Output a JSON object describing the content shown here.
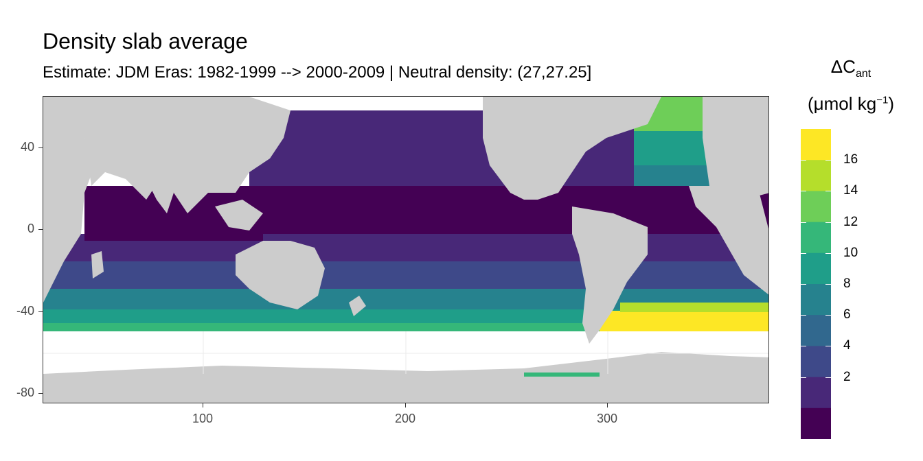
{
  "title": "Density slab average",
  "subtitle": "Estimate: JDM Eras: 1982-1999 --> 2000-2009 | Neutral density: (27,27.25]",
  "axes": {
    "x_ticks": [
      "100",
      "200",
      "300"
    ],
    "y_ticks": [
      "40",
      "0",
      "-40",
      "-80"
    ]
  },
  "legend": {
    "title_symbol": "ΔC",
    "title_sub": "ant",
    "unit_open": "(μmol kg",
    "unit_sup": "−1",
    "unit_close": ")",
    "labels": [
      "16",
      "14",
      "12",
      "10",
      "8",
      "6",
      "4",
      "2"
    ],
    "colors": [
      "#fde725",
      "#b5de2b",
      "#6ece58",
      "#35b779",
      "#1f9e89",
      "#26828e",
      "#31688e",
      "#3e4989",
      "#482878",
      "#440154"
    ]
  },
  "chart_data": {
    "type": "heatmap",
    "title": "Density slab average",
    "subtitle": "Estimate: JDM Eras: 1982-1999 --> 2000-2009 | Neutral density: (27,27.25]",
    "xlabel": "",
    "ylabel": "",
    "xlim": [
      20,
      380
    ],
    "ylim": [
      -85,
      65
    ],
    "x_ticks": [
      100,
      200,
      300
    ],
    "y_ticks": [
      40,
      0,
      -40,
      -80
    ],
    "colorbar": {
      "breaks": [
        2,
        4,
        6,
        8,
        10,
        12,
        14,
        16
      ],
      "range": [
        0,
        18
      ],
      "palette": "viridis"
    },
    "land_color": "#cccccc",
    "missing_color": "#ffffff",
    "grid": true,
    "legend_position": "right"
  }
}
